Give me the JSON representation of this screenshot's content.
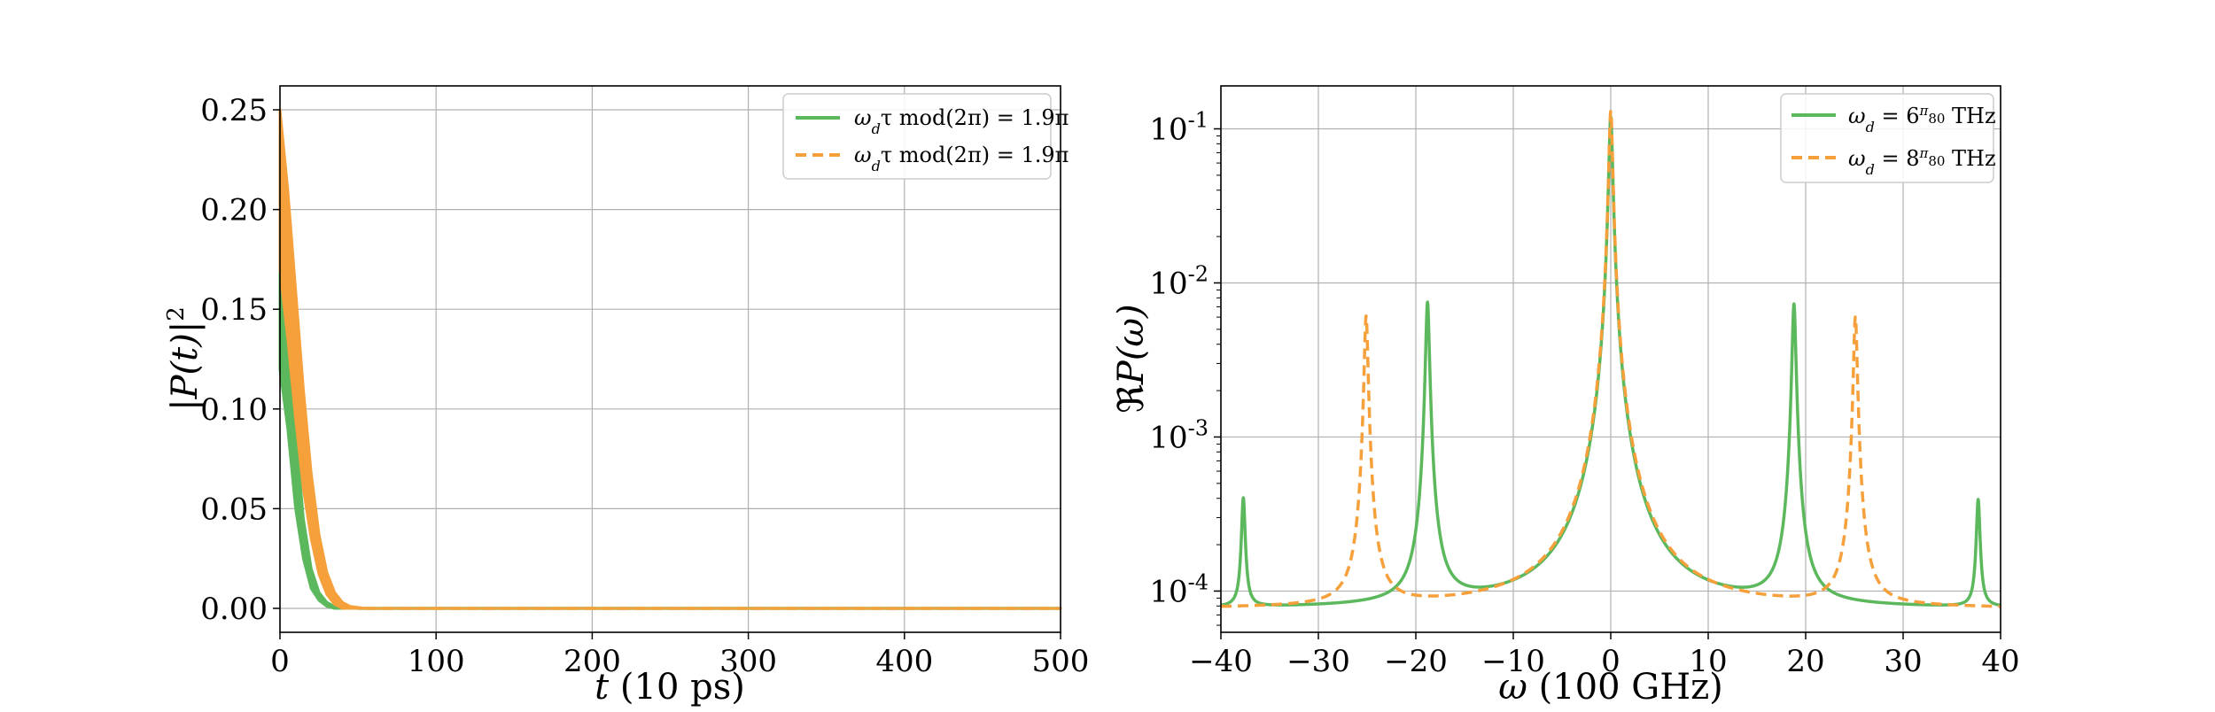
{
  "colors": {
    "green": "#5cb85c",
    "orange": "#f5a03a"
  },
  "chart_data": [
    {
      "type": "line",
      "xlabel": "t (10 ps)",
      "ylabel": "|P(t)|²",
      "xlim": [
        0,
        500
      ],
      "ylim": [
        -0.012,
        0.262
      ],
      "xticks": [
        0,
        100,
        200,
        300,
        400,
        500
      ],
      "yticks": [
        0.0,
        0.05,
        0.1,
        0.15,
        0.2,
        0.25
      ],
      "xtick_labels": [
        "0",
        "100",
        "200",
        "300",
        "400",
        "500"
      ],
      "ytick_labels": [
        "0.00",
        "0.05",
        "0.10",
        "0.15",
        "0.20",
        "0.25"
      ],
      "grid": true,
      "legend_position": "top-right",
      "series": [
        {
          "name": "ω_d τ mod(2π) = 1.9π",
          "style": "solid",
          "color": "#5cb85c",
          "x": [
            0,
            5,
            10,
            15,
            20,
            25,
            30,
            35,
            40,
            50,
            500
          ],
          "upper": [
            0.2,
            0.15,
            0.09,
            0.045,
            0.02,
            0.008,
            0.003,
            0.001,
            0.0,
            0.0,
            0.0
          ],
          "lower": [
            0.12,
            0.09,
            0.05,
            0.025,
            0.01,
            0.004,
            0.001,
            0.0,
            0.0,
            0.0,
            0.0
          ]
        },
        {
          "name": "ω_d τ mod(2π) = 1.9π",
          "style": "dashed",
          "color": "#f5a03a",
          "x": [
            0,
            5,
            10,
            15,
            20,
            25,
            30,
            35,
            40,
            45,
            55,
            500
          ],
          "upper": [
            0.25,
            0.21,
            0.16,
            0.11,
            0.068,
            0.037,
            0.018,
            0.008,
            0.003,
            0.001,
            0.0,
            0.0
          ],
          "lower": [
            0.17,
            0.135,
            0.095,
            0.06,
            0.035,
            0.017,
            0.007,
            0.002,
            0.0,
            0.0,
            0.0,
            0.0
          ]
        }
      ]
    },
    {
      "type": "line",
      "xlabel": "ω (100 GHz)",
      "ylabel": "ℜP(ω)",
      "xlim": [
        -40,
        40
      ],
      "ylim": [
        5.4e-05,
        0.19
      ],
      "yscale": "log",
      "xticks": [
        -40,
        -30,
        -20,
        -10,
        0,
        10,
        20,
        30,
        40
      ],
      "xtick_labels": [
        "−40",
        "−30",
        "−20",
        "−10",
        "0",
        "10",
        "20",
        "30",
        "40"
      ],
      "yticks": [
        0.0001,
        0.001,
        0.01,
        0.1
      ],
      "ytick_labels": [
        "10-4",
        "10-3",
        "10-2",
        "10-1"
      ],
      "grid": true,
      "legend_position": "top-right",
      "baseline": 7.6e-05,
      "series": [
        {
          "name": "ω_d = 6π/80 THz",
          "style": "solid",
          "color": "#5cb85c",
          "peaks": [
            {
              "x": 0,
              "y": 0.12
            },
            {
              "x": -18.8,
              "y": 0.0075
            },
            {
              "x": 18.8,
              "y": 0.0073
            },
            {
              "x": -37.7,
              "y": 0.0004
            },
            {
              "x": 37.7,
              "y": 0.00039
            }
          ]
        },
        {
          "name": "ω_d = 8π/80 THz",
          "style": "dashed",
          "color": "#f5a03a",
          "peaks": [
            {
              "x": 0,
              "y": 0.13
            },
            {
              "x": -25.1,
              "y": 0.0061
            },
            {
              "x": 25.1,
              "y": 0.006
            }
          ]
        }
      ]
    }
  ],
  "legend_texts": {
    "left_1": {
      "a": "ω",
      "sub": "d",
      "b": "τ mod(2π) = 1.9π"
    },
    "left_2": {
      "a": "ω",
      "sub": "d",
      "b": "τ mod(2π) = 1.9π"
    },
    "right_1": {
      "a": "ω",
      "sub": "d",
      "b": " = 6",
      "num": "π",
      "den": "80",
      "c": " THz"
    },
    "right_2": {
      "a": "ω",
      "sub": "d",
      "b": " = 8",
      "num": "π",
      "den": "80",
      "c": " THz"
    }
  },
  "axis_text": {
    "left_x": {
      "var": "t",
      "unit": " (10 ps)"
    },
    "left_y": {
      "a": "|",
      "var": "P(t)",
      "b": "|",
      "sup": "2"
    },
    "right_x": {
      "var": "ω",
      "unit": " (100 GHz)"
    },
    "right_y": {
      "a": "ℜ",
      "var": "P(ω)"
    }
  }
}
